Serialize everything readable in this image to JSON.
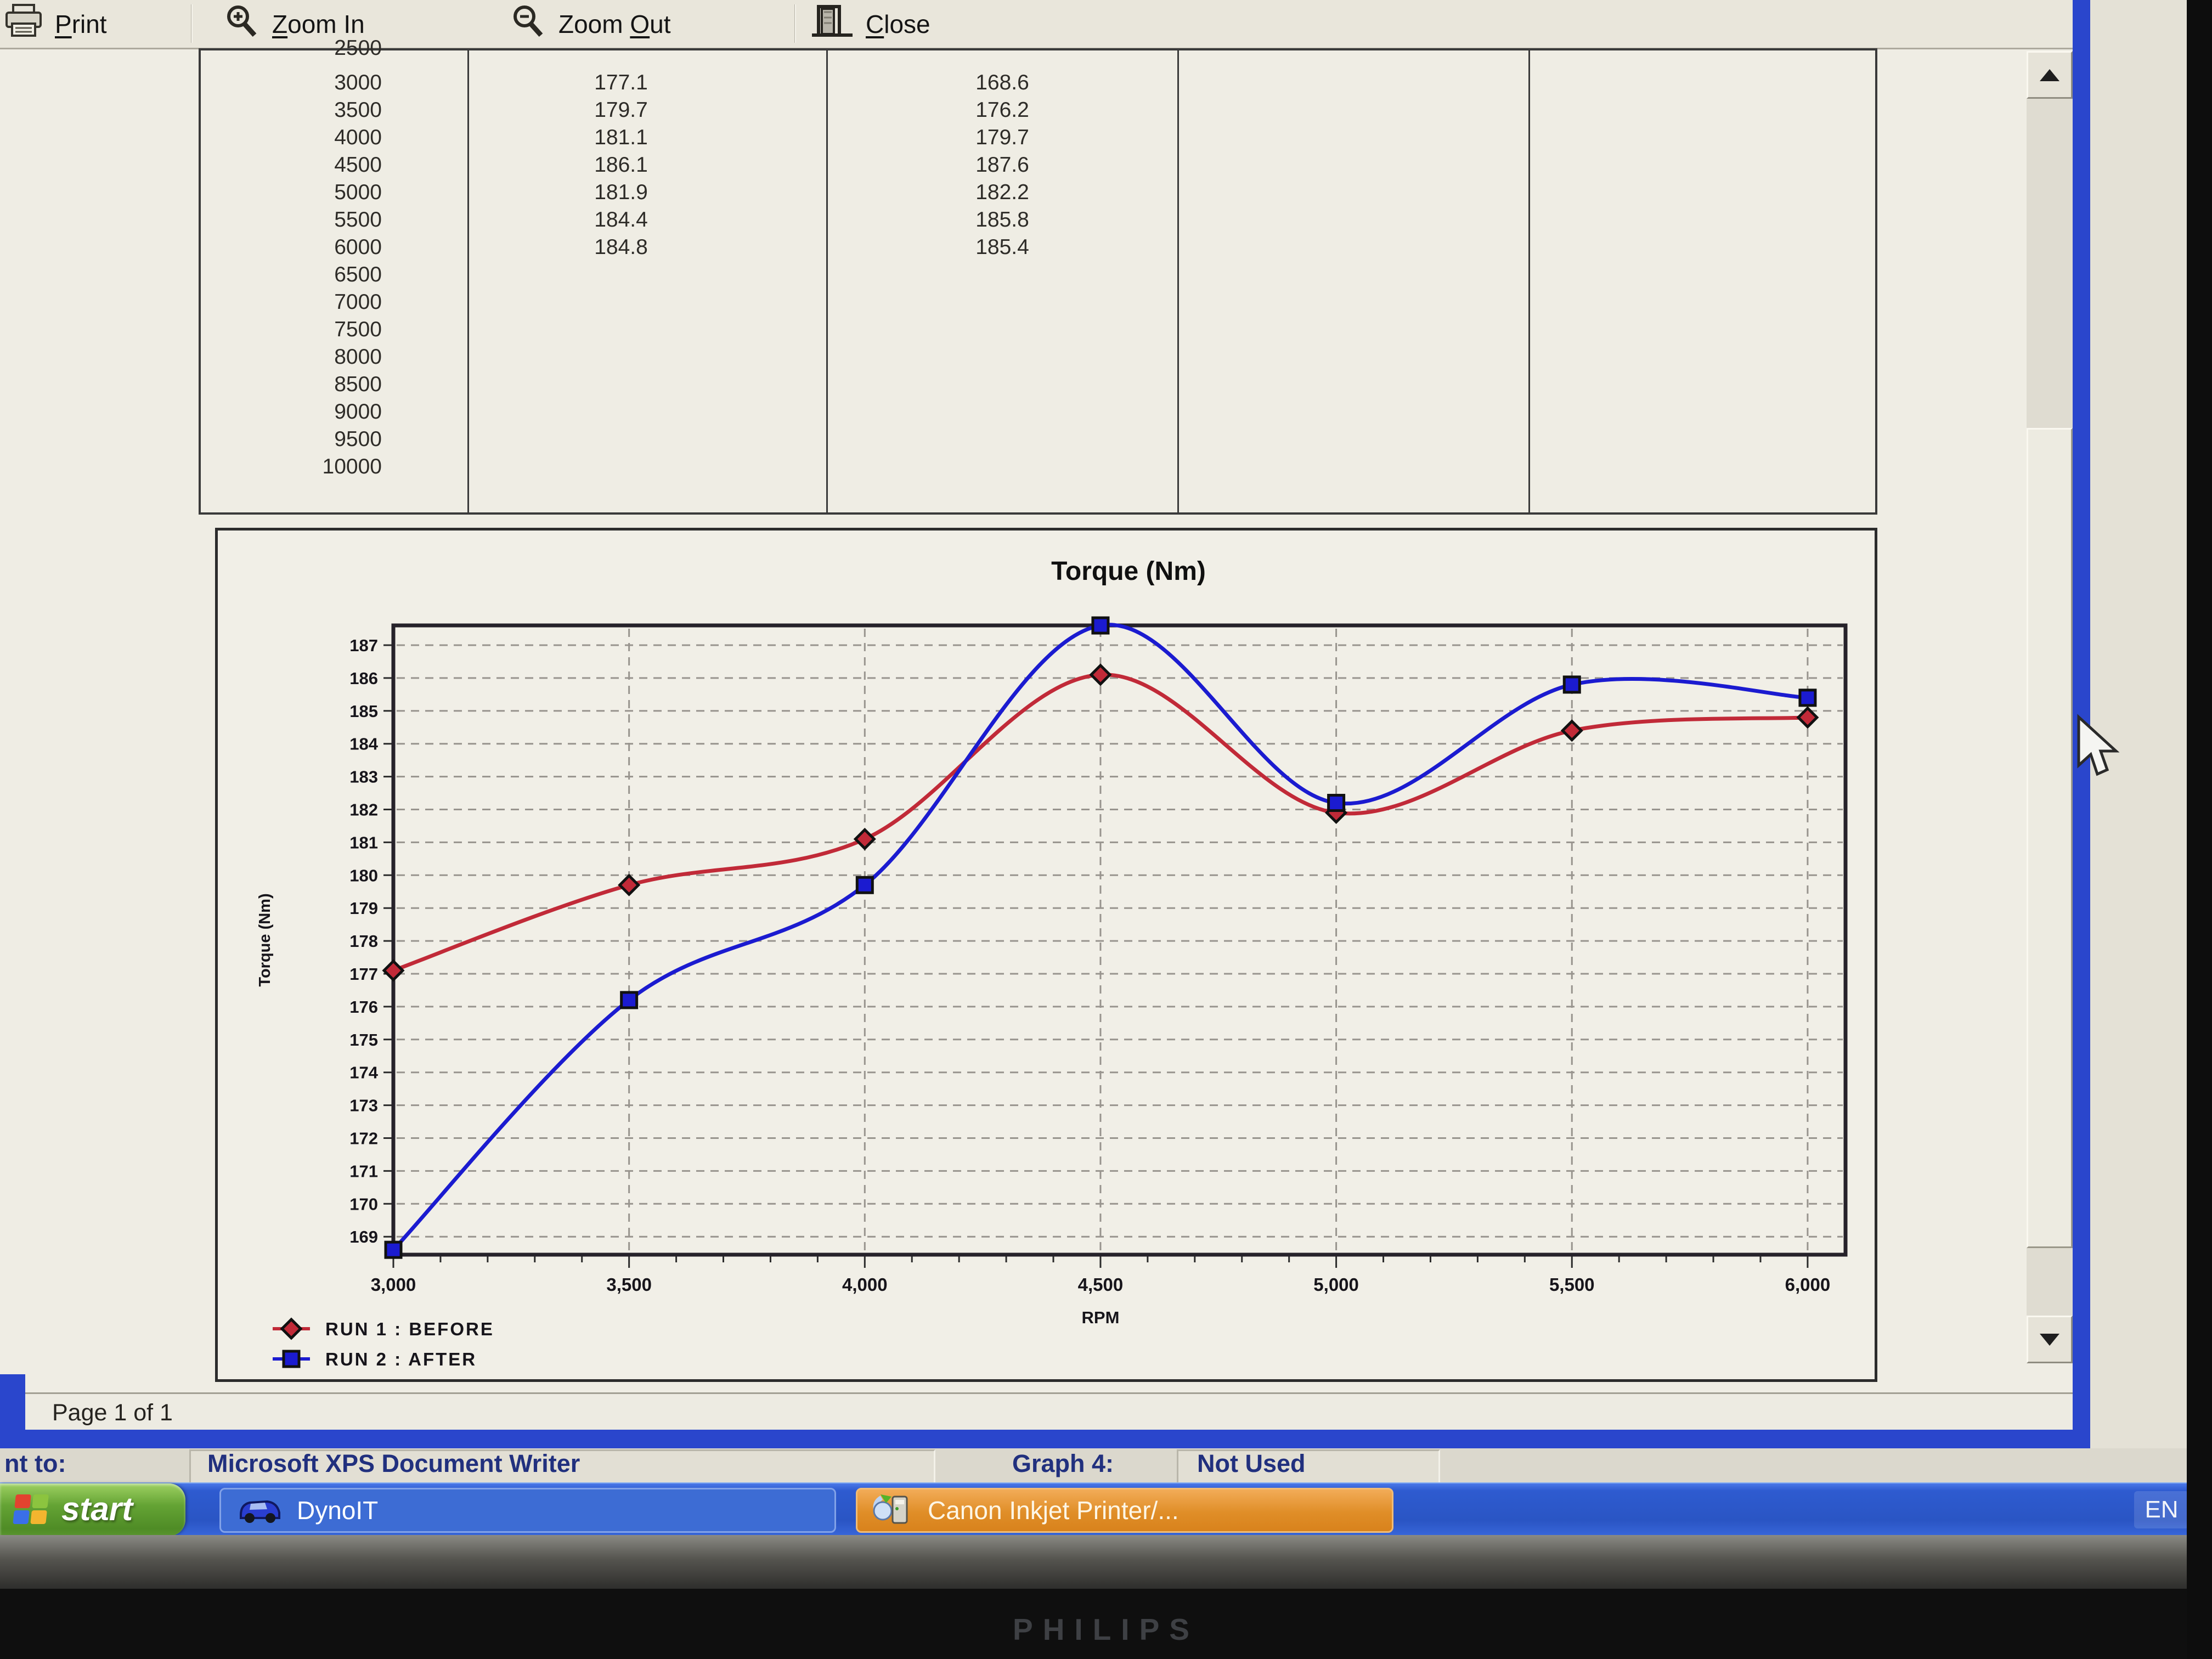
{
  "toolbar": {
    "print": {
      "label": "Print",
      "accel": "P"
    },
    "zoom_in": {
      "label": "Zoom In",
      "accel": "Z"
    },
    "zoom_out": {
      "label": "Zoom Out",
      "accel": "O"
    },
    "close": {
      "label": "Close",
      "accel": "C"
    }
  },
  "table": {
    "rpm_clipped": "2500",
    "rpm_rows": [
      "3000",
      "3500",
      "4000",
      "4500",
      "5000",
      "5500",
      "6000",
      "6500",
      "7000",
      "7500",
      "8000",
      "8500",
      "9000",
      "9500",
      "10000"
    ]
  },
  "chart_data": {
    "type": "line",
    "title": "Torque (Nm)",
    "xlabel": "RPM",
    "ylabel": "Torque (Nm)",
    "x": [
      3000,
      3500,
      4000,
      4500,
      5000,
      5500,
      6000
    ],
    "series": [
      {
        "name": "RUN 1 : BEFORE",
        "color": "#c12a38",
        "marker": "diamond",
        "values": [
          177.1,
          179.7,
          181.1,
          186.1,
          181.9,
          184.4,
          184.8
        ]
      },
      {
        "name": "RUN 2 : AFTER",
        "color": "#1b1bd0",
        "marker": "square",
        "values": [
          168.6,
          176.2,
          179.7,
          187.6,
          182.2,
          185.8,
          185.4
        ]
      }
    ],
    "ylim": [
      169,
      187
    ],
    "ytick_step": 1,
    "xticks": [
      3000,
      3500,
      4000,
      4500,
      5000,
      5500,
      6000
    ],
    "xminor_step": 100,
    "grid": "dashed",
    "legend_position": "bottom-left"
  },
  "statusbar": {
    "page": "Page 1 of 1"
  },
  "dialog": {
    "print_to": "nt to:",
    "printer_name": "Microsoft XPS Document Writer",
    "graph_label": "Graph 4:",
    "graph_value": "Not Used"
  },
  "taskbar": {
    "start": "start",
    "apps": [
      {
        "label": "DynoIT"
      },
      {
        "label": "Canon Inkjet Printer/..."
      }
    ],
    "language": "EN"
  },
  "monitor": {
    "brand": "PHILIPS"
  },
  "colors": {
    "window_border": "#2a46cc",
    "taskbar_blue": "#2e5ac8",
    "start_green": "#5d9a30",
    "canon_orange": "#dd8f35",
    "run1_red": "#c12a38",
    "run2_blue": "#1b1bd0"
  }
}
